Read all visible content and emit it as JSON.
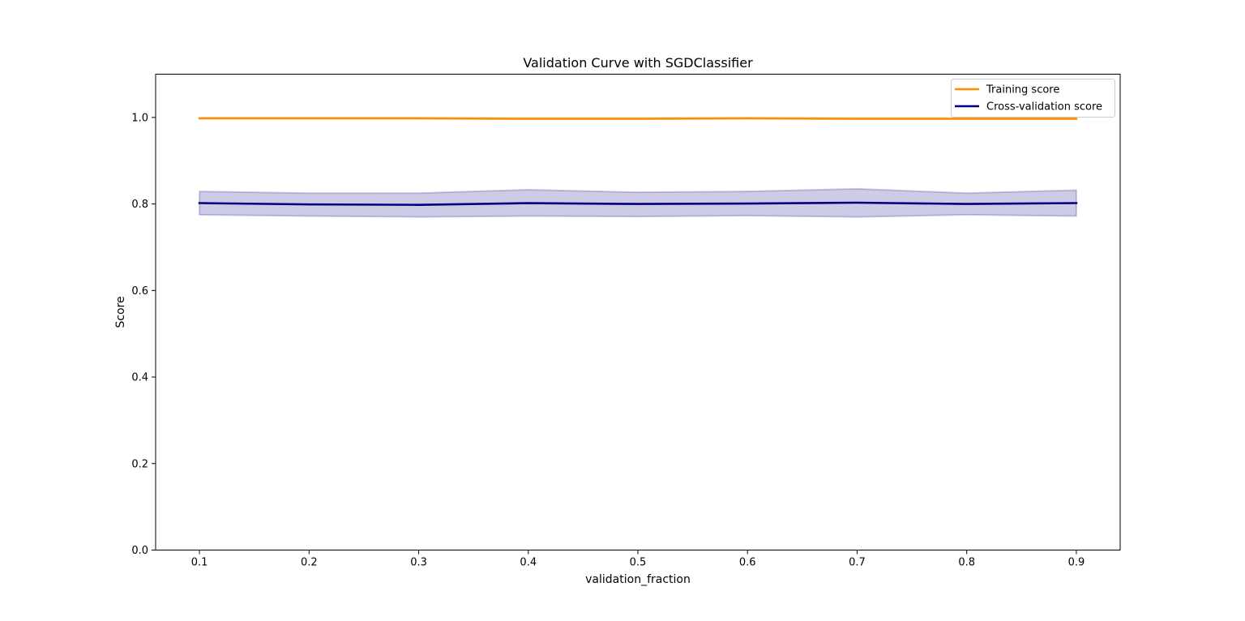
{
  "chart_data": {
    "type": "line",
    "title": "Validation Curve with SGDClassifier",
    "xlabel": "validation_fraction",
    "ylabel": "Score",
    "x": [
      0.1,
      0.2,
      0.3,
      0.4,
      0.5,
      0.6,
      0.7,
      0.8,
      0.9
    ],
    "xlim": [
      0.06,
      0.94
    ],
    "ylim": [
      0.0,
      1.1
    ],
    "xticks": [
      0.1,
      0.2,
      0.3,
      0.4,
      0.5,
      0.6,
      0.7,
      0.8,
      0.9
    ],
    "xtick_labels": [
      "0.1",
      "0.2",
      "0.3",
      "0.4",
      "0.5",
      "0.6",
      "0.7",
      "0.8",
      "0.9"
    ],
    "yticks": [
      0.0,
      0.2,
      0.4,
      0.6,
      0.8,
      1.0
    ],
    "ytick_labels": [
      "0.0",
      "0.2",
      "0.4",
      "0.6",
      "0.8",
      "1.0"
    ],
    "grid": false,
    "legend_position": "top-right",
    "series": [
      {
        "name": "Training score",
        "color": "#ff8c00",
        "values": [
          0.998,
          0.998,
          0.998,
          0.997,
          0.997,
          0.998,
          0.997,
          0.997,
          0.997
        ],
        "band_lower": [
          0.997,
          0.997,
          0.997,
          0.996,
          0.996,
          0.997,
          0.996,
          0.996,
          0.996
        ],
        "band_upper": [
          0.999,
          0.999,
          0.999,
          0.998,
          0.998,
          0.999,
          0.998,
          0.998,
          0.998
        ]
      },
      {
        "name": "Cross-validation score",
        "color": "#000080",
        "values": [
          0.802,
          0.799,
          0.798,
          0.802,
          0.8,
          0.801,
          0.803,
          0.8,
          0.802
        ],
        "band_lower": [
          0.775,
          0.772,
          0.77,
          0.772,
          0.771,
          0.773,
          0.77,
          0.775,
          0.772
        ],
        "band_upper": [
          0.829,
          0.825,
          0.825,
          0.833,
          0.827,
          0.829,
          0.835,
          0.825,
          0.832
        ]
      }
    ]
  }
}
